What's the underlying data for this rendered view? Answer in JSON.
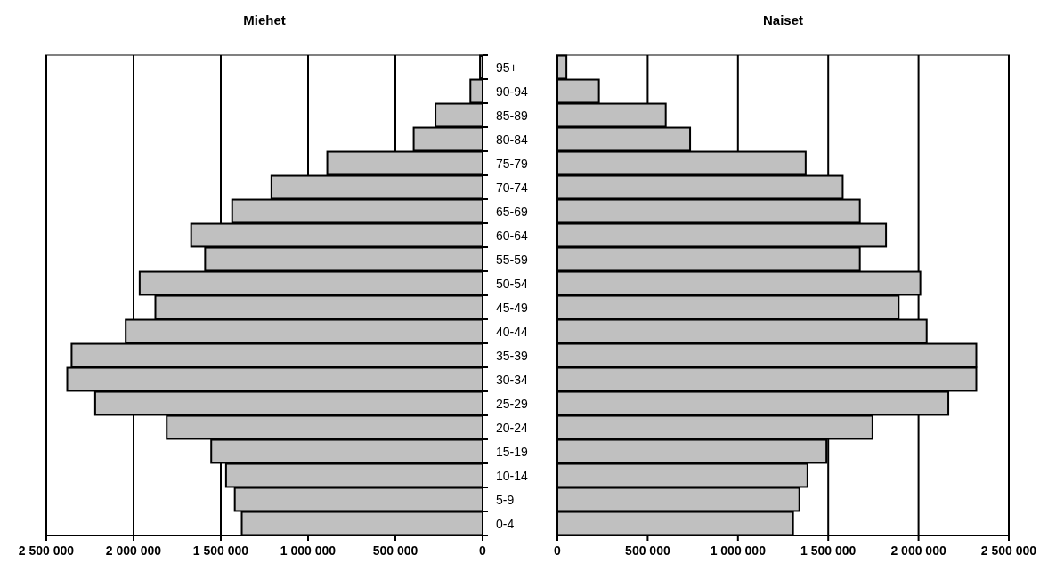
{
  "chart_data": [
    {
      "type": "bar",
      "orientation": "horizontal",
      "title": "Miehet",
      "color": "#c0c0c0",
      "grid": "x",
      "categories": [
        "95+",
        "90-94",
        "85-89",
        "80-84",
        "75-79",
        "70-74",
        "65-69",
        "60-64",
        "55-59",
        "50-54",
        "45-49",
        "40-44",
        "35-39",
        "30-34",
        "25-29",
        "20-24",
        "15-19",
        "10-14",
        "5-9",
        "0-4"
      ],
      "values": [
        15000,
        70000,
        270000,
        395000,
        890000,
        1210000,
        1435000,
        1670000,
        1590000,
        1965000,
        1875000,
        2045000,
        2355000,
        2380000,
        2220000,
        1810000,
        1555000,
        1470000,
        1420000,
        1380000
      ],
      "xlim": [
        2500000,
        0
      ],
      "xticks": [
        {
          "value": 2500000,
          "label": "2 500 000"
        },
        {
          "value": 2000000,
          "label": "2 000 000"
        },
        {
          "value": 1500000,
          "label": "1 500 000"
        },
        {
          "value": 1000000,
          "label": "1 000 000"
        },
        {
          "value": 500000,
          "label": "500 000"
        },
        0
      ]
    },
    {
      "type": "bar",
      "orientation": "horizontal",
      "title": "Naiset",
      "color": "#c0c0c0",
      "grid": "x",
      "tick_labels": "x",
      "categories": [
        null,
        null,
        null,
        null,
        null,
        null,
        null,
        null,
        null,
        null,
        null,
        null,
        null,
        null,
        null,
        null,
        null,
        null,
        null,
        null
      ],
      "values": [
        50000,
        230000,
        600000,
        735000,
        1375000,
        1580000,
        1675000,
        1820000,
        1675000,
        2010000,
        1890000,
        2045000,
        2320000,
        2320000,
        2165000,
        1745000,
        1490000,
        1385000,
        1340000,
        1305000
      ],
      "xlim": [
        0,
        2500000
      ],
      "xticks": [
        0,
        {
          "value": 500000,
          "label": "500 000"
        },
        {
          "value": 1000000,
          "label": "1 000 000"
        },
        {
          "value": 1500000,
          "label": "1 500 000"
        },
        {
          "value": 2000000,
          "label": "2 000 000"
        },
        {
          "value": 2500000,
          "label": "2 500 000"
        }
      ]
    }
  ]
}
